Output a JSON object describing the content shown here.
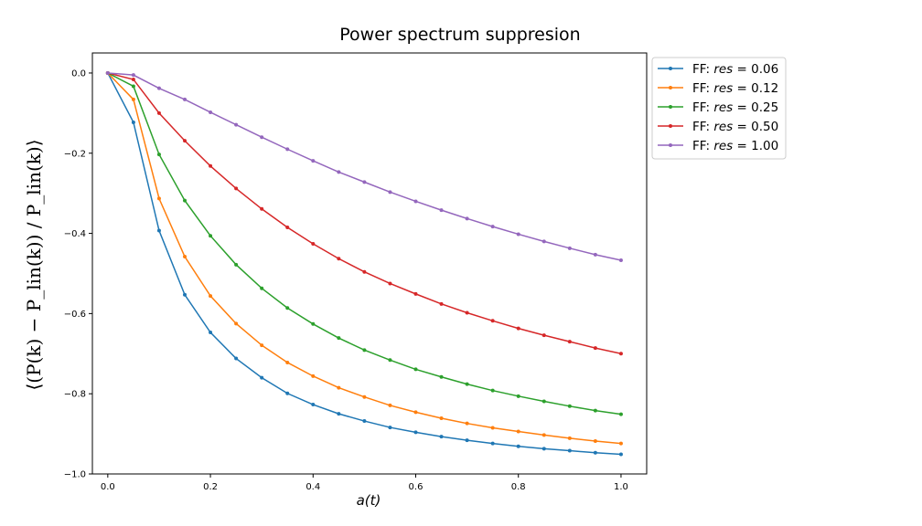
{
  "chart_data": {
    "type": "line",
    "title": "Power spectrum suppresion",
    "xlabel": "a(t)",
    "ylabel": "⟨(P(k) − P_lin(k)) / P_lin(k)⟩",
    "xlim": [
      -0.03,
      1.05
    ],
    "ylim": [
      -1.0,
      0.05
    ],
    "xticks": [
      0.0,
      0.2,
      0.4,
      0.6,
      0.8,
      1.0
    ],
    "xtick_labels": [
      "0.0",
      "0.2",
      "0.4",
      "0.6",
      "0.8",
      "1.0"
    ],
    "yticks": [
      0.0,
      -0.2,
      -0.4,
      -0.6,
      -0.8,
      -1.0
    ],
    "ytick_labels": [
      "0.0",
      "−0.2",
      "−0.4",
      "−0.6",
      "−0.8",
      "−1.0"
    ],
    "grid": false,
    "legend_position": "outside-right-top",
    "x": [
      0.0,
      0.05,
      0.1,
      0.15,
      0.2,
      0.25,
      0.3,
      0.35,
      0.4,
      0.45,
      0.5,
      0.55,
      0.6,
      0.65,
      0.7,
      0.75,
      0.8,
      0.85,
      0.9,
      0.95,
      1.0
    ],
    "series": [
      {
        "label_prefix": "FF: ",
        "label_var": "res",
        "label_value": "= 0.06",
        "color": "#1f77b4",
        "values": [
          0.0,
          -0.123,
          -0.393,
          -0.553,
          -0.647,
          -0.712,
          -0.76,
          -0.799,
          -0.827,
          -0.85,
          -0.868,
          -0.884,
          -0.896,
          -0.907,
          -0.916,
          -0.924,
          -0.931,
          -0.937,
          -0.942,
          -0.947,
          -0.951
        ]
      },
      {
        "label_prefix": "FF: ",
        "label_var": "res",
        "label_value": "= 0.12",
        "color": "#ff7f0e",
        "values": [
          0.0,
          -0.066,
          -0.313,
          -0.458,
          -0.556,
          -0.625,
          -0.679,
          -0.722,
          -0.756,
          -0.785,
          -0.808,
          -0.829,
          -0.846,
          -0.861,
          -0.874,
          -0.885,
          -0.894,
          -0.903,
          -0.911,
          -0.918,
          -0.924
        ]
      },
      {
        "label_prefix": "FF: ",
        "label_var": "res",
        "label_value": "= 0.25",
        "color": "#2ca02c",
        "values": [
          0.0,
          -0.033,
          -0.203,
          -0.318,
          -0.406,
          -0.478,
          -0.537,
          -0.586,
          -0.626,
          -0.661,
          -0.691,
          -0.716,
          -0.739,
          -0.758,
          -0.776,
          -0.792,
          -0.806,
          -0.819,
          -0.831,
          -0.842,
          -0.851
        ]
      },
      {
        "label_prefix": "FF: ",
        "label_var": "res",
        "label_value": "= 0.50",
        "color": "#d62728",
        "values": [
          0.0,
          -0.016,
          -0.1,
          -0.169,
          -0.232,
          -0.288,
          -0.339,
          -0.385,
          -0.426,
          -0.463,
          -0.496,
          -0.525,
          -0.551,
          -0.576,
          -0.598,
          -0.618,
          -0.637,
          -0.654,
          -0.67,
          -0.686,
          -0.7
        ]
      },
      {
        "label_prefix": "FF: ",
        "label_var": "res",
        "label_value": "= 1.00",
        "color": "#9467bd",
        "values": [
          0.0,
          -0.005,
          -0.038,
          -0.066,
          -0.098,
          -0.129,
          -0.16,
          -0.19,
          -0.219,
          -0.247,
          -0.272,
          -0.297,
          -0.32,
          -0.342,
          -0.363,
          -0.383,
          -0.402,
          -0.42,
          -0.437,
          -0.453,
          -0.467
        ]
      }
    ]
  }
}
